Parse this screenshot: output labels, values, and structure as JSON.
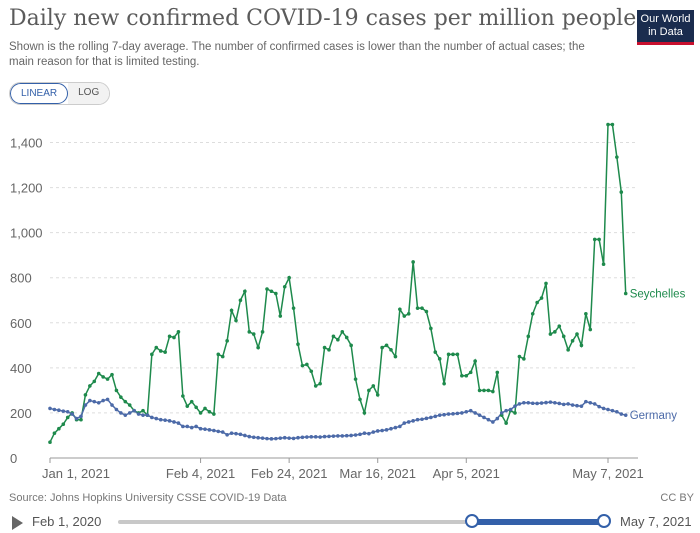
{
  "header": {
    "title": "Daily new confirmed COVID-19 cases per million people",
    "subtitle": "Shown is the rolling 7-day average. The number of confirmed cases is lower than the number of actual cases; the main reason for that is limited testing.",
    "logo_line1": "Our World",
    "logo_line2": "in Data"
  },
  "scale_toggle": {
    "linear_label": "LINEAR",
    "log_label": "LOG",
    "selected": "LINEAR"
  },
  "footer": {
    "source": "Source: Johns Hopkins University CSSE COVID-19 Data",
    "license": "CC BY"
  },
  "timeline": {
    "start_label": "Feb 1, 2020",
    "end_label": "May 7, 2021",
    "selected_start_fraction": 0.728,
    "selected_end_fraction": 1.0
  },
  "colors": {
    "seychelles": "#1e8a4c",
    "germany": "#4c6aa8",
    "grid": "#dddddd",
    "axis_text": "#666666"
  },
  "chart_data": {
    "type": "line",
    "title": "Daily new confirmed COVID-19 cases per million people",
    "xlabel": "",
    "ylabel": "",
    "x_start": "2021-01-01",
    "x_end": "2021-05-07",
    "ylim": [
      0,
      1500
    ],
    "yticks": [
      0,
      200,
      400,
      600,
      800,
      1000,
      1200,
      1400
    ],
    "ytick_labels": [
      "0",
      "200",
      "400",
      "600",
      "800",
      "1,000",
      "1,200",
      "1,400"
    ],
    "xtick_labels": [
      "Jan 1, 2021",
      "Feb 4, 2021",
      "Feb 24, 2021",
      "Mar 16, 2021",
      "Apr 5, 2021",
      "May 7, 2021"
    ],
    "xtick_dates": [
      "2021-01-01",
      "2021-02-04",
      "2021-02-24",
      "2021-03-16",
      "2021-04-05",
      "2021-05-07"
    ],
    "grid": true,
    "series": [
      {
        "name": "Seychelles",
        "values": [
          70,
          110,
          130,
          150,
          180,
          200,
          170,
          170,
          280,
          320,
          340,
          375,
          360,
          350,
          370,
          300,
          270,
          250,
          235,
          210,
          200,
          210,
          190,
          460,
          490,
          475,
          470,
          540,
          535,
          560,
          275,
          230,
          250,
          225,
          200,
          220,
          205,
          195,
          460,
          450,
          520,
          655,
          610,
          700,
          740,
          560,
          550,
          490,
          560,
          750,
          740,
          730,
          630,
          760,
          800,
          665,
          505,
          410,
          415,
          385,
          320,
          330,
          490,
          480,
          540,
          525,
          560,
          535,
          500,
          350,
          260,
          200,
          300,
          320,
          280,
          490,
          500,
          480,
          450,
          660,
          630,
          640,
          870,
          665,
          665,
          650,
          575,
          470,
          440,
          330,
          460,
          460,
          460,
          365,
          365,
          380,
          430,
          300,
          300,
          300,
          295,
          380,
          190,
          155,
          210,
          200,
          450,
          440,
          540,
          640,
          690,
          710,
          775,
          550,
          560,
          585,
          540,
          480,
          520,
          550,
          500,
          640,
          570,
          970,
          970,
          860,
          1480,
          1480,
          1335,
          1180,
          730
        ]
      },
      {
        "name": "Germany",
        "values": [
          220,
          215,
          212,
          208,
          205,
          195,
          175,
          185,
          235,
          255,
          250,
          245,
          255,
          260,
          235,
          215,
          200,
          190,
          200,
          210,
          195,
          190,
          190,
          180,
          175,
          170,
          168,
          165,
          160,
          155,
          140,
          140,
          135,
          140,
          130,
          128,
          125,
          122,
          118,
          115,
          103,
          110,
          108,
          105,
          100,
          95,
          92,
          90,
          88,
          86,
          85,
          86,
          88,
          90,
          88,
          87,
          90,
          92,
          93,
          94,
          94,
          93,
          95,
          96,
          97,
          98,
          98,
          99,
          100,
          102,
          105,
          110,
          108,
          115,
          120,
          122,
          125,
          130,
          135,
          140,
          155,
          160,
          165,
          170,
          172,
          176,
          180,
          185,
          190,
          192,
          195,
          196,
          198,
          200,
          205,
          210,
          200,
          190,
          180,
          170,
          160,
          175,
          200,
          210,
          215,
          230,
          240,
          245,
          245,
          243,
          242,
          244,
          246,
          248,
          245,
          242,
          238,
          240,
          235,
          232,
          230,
          250,
          245,
          240,
          228,
          220,
          215,
          210,
          205,
          195,
          190
        ]
      }
    ]
  }
}
